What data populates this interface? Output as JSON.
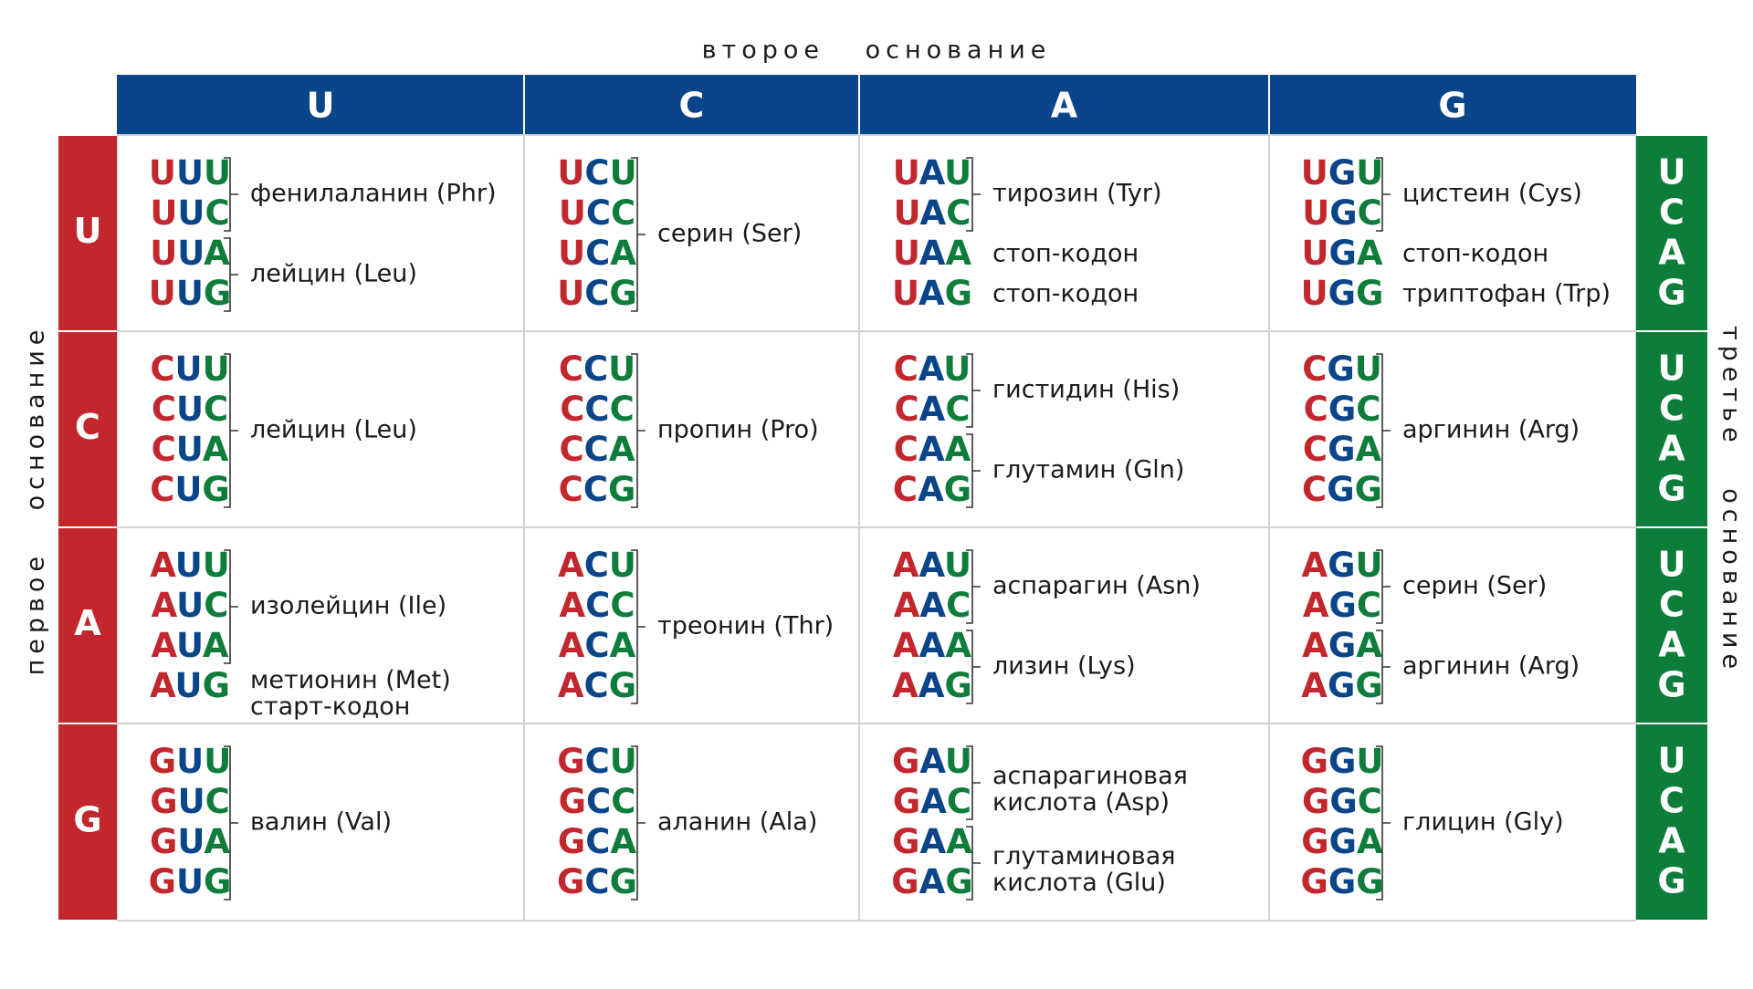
{
  "top_label": "второе основание",
  "left_label": "первое основание",
  "right_label": "третье основание",
  "columns": [
    "U",
    "C",
    "A",
    "G"
  ],
  "rows": [
    "U",
    "C",
    "A",
    "G"
  ],
  "third_bases": [
    [
      "U",
      "C",
      "A",
      "G"
    ],
    [
      "U",
      "C",
      "A",
      "G"
    ],
    [
      "U",
      "C",
      "A",
      "G"
    ],
    [
      "U",
      "C",
      "A",
      "G"
    ]
  ],
  "cells": [
    [
      {
        "groups": [
          {
            "codons": [
              "UUU",
              "UUC"
            ],
            "label": [
              "фенилаланин (Phr)"
            ]
          },
          {
            "codons": [
              "UUA",
              "UUG"
            ],
            "label": [
              "лейцин (Leu)"
            ]
          }
        ]
      },
      {
        "groups": [
          {
            "codons": [
              "UCU",
              "UCC",
              "UCA",
              "UCG"
            ],
            "label": [
              "серин (Ser)"
            ]
          }
        ]
      },
      {
        "groups": [
          {
            "codons": [
              "UAU",
              "UAC"
            ],
            "label": [
              "тирозин (Tyr)"
            ]
          },
          {
            "codons": [
              "UAA"
            ],
            "label": [
              "стоп-кодон"
            ]
          },
          {
            "codons": [
              "UAG"
            ],
            "label": [
              "стоп-кодон"
            ]
          }
        ]
      },
      {
        "groups": [
          {
            "codons": [
              "UGU",
              "UGC"
            ],
            "label": [
              "цистеин (Cys)"
            ]
          },
          {
            "codons": [
              "UGA"
            ],
            "label": [
              "стоп-кодон"
            ]
          },
          {
            "codons": [
              "UGG"
            ],
            "label": [
              "триптофан (Trp)"
            ]
          }
        ]
      }
    ],
    [
      {
        "groups": [
          {
            "codons": [
              "CUU",
              "CUC",
              "CUA",
              "CUG"
            ],
            "label": [
              "лейцин (Leu)"
            ]
          }
        ]
      },
      {
        "groups": [
          {
            "codons": [
              "CCU",
              "CCC",
              "CCA",
              "CCG"
            ],
            "label": [
              "пропин (Pro)"
            ]
          }
        ]
      },
      {
        "groups": [
          {
            "codons": [
              "CAU",
              "CAC"
            ],
            "label": [
              "гистидин (His)"
            ]
          },
          {
            "codons": [
              "CAA",
              "CAG"
            ],
            "label": [
              "глутамин (Gln)"
            ]
          }
        ]
      },
      {
        "groups": [
          {
            "codons": [
              "CGU",
              "CGC",
              "CGA",
              "CGG"
            ],
            "label": [
              "аргинин (Arg)"
            ]
          }
        ]
      }
    ],
    [
      {
        "groups": [
          {
            "codons": [
              "AUU",
              "AUC",
              "AUA"
            ],
            "label": [
              "изолейцин (Ile)"
            ]
          },
          {
            "codons": [
              "AUG"
            ],
            "label": [
              "метионин (Met)",
              "старт-кодон"
            ]
          }
        ]
      },
      {
        "groups": [
          {
            "codons": [
              "ACU",
              "ACC",
              "ACA",
              "ACG"
            ],
            "label": [
              "треонин (Thr)"
            ]
          }
        ]
      },
      {
        "groups": [
          {
            "codons": [
              "AAU",
              "AAC"
            ],
            "label": [
              "аспарагин (Asn)"
            ]
          },
          {
            "codons": [
              "AAA",
              "AAG"
            ],
            "label": [
              "лизин (Lys)"
            ]
          }
        ]
      },
      {
        "groups": [
          {
            "codons": [
              "AGU",
              "AGC"
            ],
            "label": [
              "серин (Ser)"
            ]
          },
          {
            "codons": [
              "AGA",
              "AGG"
            ],
            "label": [
              "аргинин (Arg)"
            ]
          }
        ]
      }
    ],
    [
      {
        "groups": [
          {
            "codons": [
              "GUU",
              "GUC",
              "GUA",
              "GUG"
            ],
            "label": [
              "валин (Val)"
            ]
          }
        ]
      },
      {
        "groups": [
          {
            "codons": [
              "GCU",
              "GCC",
              "GCA",
              "GCG"
            ],
            "label": [
              "аланин (Ala)"
            ]
          }
        ]
      },
      {
        "groups": [
          {
            "codons": [
              "GAU",
              "GAC"
            ],
            "label": [
              "аспарагиновая",
              "кислота (Asp)"
            ]
          },
          {
            "codons": [
              "GAA",
              "GAG"
            ],
            "label": [
              "глутаминовая",
              "кислота (Glu)"
            ]
          }
        ]
      },
      {
        "groups": [
          {
            "codons": [
              "GGU",
              "GGC",
              "GGA",
              "GGG"
            ],
            "label": [
              "глицин (Gly)"
            ]
          }
        ]
      }
    ]
  ]
}
